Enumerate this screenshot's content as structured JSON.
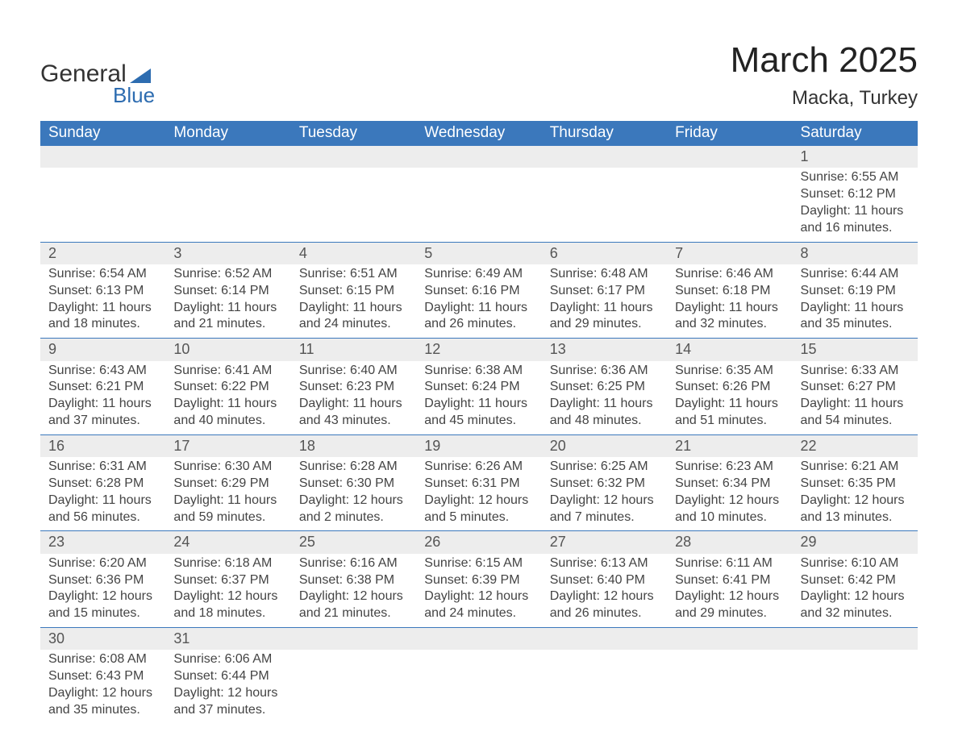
{
  "logo": {
    "line1": "General",
    "line2": "Blue"
  },
  "title": "March 2025",
  "location": "Macka, Turkey",
  "colors": {
    "header_bg": "#3b78bc",
    "header_text": "#ffffff",
    "daynum_bg": "#ededed",
    "row_divider": "#3b78bc",
    "body_text": "#444444",
    "page_bg": "#ffffff",
    "logo_blue": "#2d6cb0"
  },
  "weekdays": [
    "Sunday",
    "Monday",
    "Tuesday",
    "Wednesday",
    "Thursday",
    "Friday",
    "Saturday"
  ],
  "labels": {
    "sunrise": "Sunrise:",
    "sunset": "Sunset:",
    "daylight": "Daylight:"
  },
  "weeks": [
    [
      null,
      null,
      null,
      null,
      null,
      null,
      {
        "n": "1",
        "sunrise": "6:55 AM",
        "sunset": "6:12 PM",
        "daylight": "11 hours and 16 minutes."
      }
    ],
    [
      {
        "n": "2",
        "sunrise": "6:54 AM",
        "sunset": "6:13 PM",
        "daylight": "11 hours and 18 minutes."
      },
      {
        "n": "3",
        "sunrise": "6:52 AM",
        "sunset": "6:14 PM",
        "daylight": "11 hours and 21 minutes."
      },
      {
        "n": "4",
        "sunrise": "6:51 AM",
        "sunset": "6:15 PM",
        "daylight": "11 hours and 24 minutes."
      },
      {
        "n": "5",
        "sunrise": "6:49 AM",
        "sunset": "6:16 PM",
        "daylight": "11 hours and 26 minutes."
      },
      {
        "n": "6",
        "sunrise": "6:48 AM",
        "sunset": "6:17 PM",
        "daylight": "11 hours and 29 minutes."
      },
      {
        "n": "7",
        "sunrise": "6:46 AM",
        "sunset": "6:18 PM",
        "daylight": "11 hours and 32 minutes."
      },
      {
        "n": "8",
        "sunrise": "6:44 AM",
        "sunset": "6:19 PM",
        "daylight": "11 hours and 35 minutes."
      }
    ],
    [
      {
        "n": "9",
        "sunrise": "6:43 AM",
        "sunset": "6:21 PM",
        "daylight": "11 hours and 37 minutes."
      },
      {
        "n": "10",
        "sunrise": "6:41 AM",
        "sunset": "6:22 PM",
        "daylight": "11 hours and 40 minutes."
      },
      {
        "n": "11",
        "sunrise": "6:40 AM",
        "sunset": "6:23 PM",
        "daylight": "11 hours and 43 minutes."
      },
      {
        "n": "12",
        "sunrise": "6:38 AM",
        "sunset": "6:24 PM",
        "daylight": "11 hours and 45 minutes."
      },
      {
        "n": "13",
        "sunrise": "6:36 AM",
        "sunset": "6:25 PM",
        "daylight": "11 hours and 48 minutes."
      },
      {
        "n": "14",
        "sunrise": "6:35 AM",
        "sunset": "6:26 PM",
        "daylight": "11 hours and 51 minutes."
      },
      {
        "n": "15",
        "sunrise": "6:33 AM",
        "sunset": "6:27 PM",
        "daylight": "11 hours and 54 minutes."
      }
    ],
    [
      {
        "n": "16",
        "sunrise": "6:31 AM",
        "sunset": "6:28 PM",
        "daylight": "11 hours and 56 minutes."
      },
      {
        "n": "17",
        "sunrise": "6:30 AM",
        "sunset": "6:29 PM",
        "daylight": "11 hours and 59 minutes."
      },
      {
        "n": "18",
        "sunrise": "6:28 AM",
        "sunset": "6:30 PM",
        "daylight": "12 hours and 2 minutes."
      },
      {
        "n": "19",
        "sunrise": "6:26 AM",
        "sunset": "6:31 PM",
        "daylight": "12 hours and 5 minutes."
      },
      {
        "n": "20",
        "sunrise": "6:25 AM",
        "sunset": "6:32 PM",
        "daylight": "12 hours and 7 minutes."
      },
      {
        "n": "21",
        "sunrise": "6:23 AM",
        "sunset": "6:34 PM",
        "daylight": "12 hours and 10 minutes."
      },
      {
        "n": "22",
        "sunrise": "6:21 AM",
        "sunset": "6:35 PM",
        "daylight": "12 hours and 13 minutes."
      }
    ],
    [
      {
        "n": "23",
        "sunrise": "6:20 AM",
        "sunset": "6:36 PM",
        "daylight": "12 hours and 15 minutes."
      },
      {
        "n": "24",
        "sunrise": "6:18 AM",
        "sunset": "6:37 PM",
        "daylight": "12 hours and 18 minutes."
      },
      {
        "n": "25",
        "sunrise": "6:16 AM",
        "sunset": "6:38 PM",
        "daylight": "12 hours and 21 minutes."
      },
      {
        "n": "26",
        "sunrise": "6:15 AM",
        "sunset": "6:39 PM",
        "daylight": "12 hours and 24 minutes."
      },
      {
        "n": "27",
        "sunrise": "6:13 AM",
        "sunset": "6:40 PM",
        "daylight": "12 hours and 26 minutes."
      },
      {
        "n": "28",
        "sunrise": "6:11 AM",
        "sunset": "6:41 PM",
        "daylight": "12 hours and 29 minutes."
      },
      {
        "n": "29",
        "sunrise": "6:10 AM",
        "sunset": "6:42 PM",
        "daylight": "12 hours and 32 minutes."
      }
    ],
    [
      {
        "n": "30",
        "sunrise": "6:08 AM",
        "sunset": "6:43 PM",
        "daylight": "12 hours and 35 minutes."
      },
      {
        "n": "31",
        "sunrise": "6:06 AM",
        "sunset": "6:44 PM",
        "daylight": "12 hours and 37 minutes."
      },
      null,
      null,
      null,
      null,
      null
    ]
  ]
}
